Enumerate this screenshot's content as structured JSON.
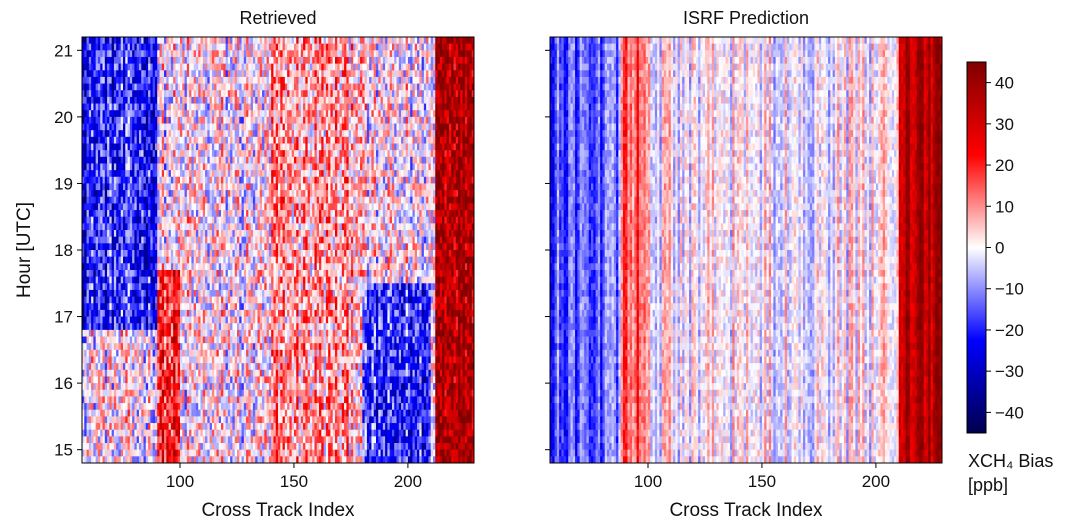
{
  "chart_data": [
    {
      "type": "heatmap",
      "title": "Retrieved",
      "xlabel": "Cross Track Index",
      "ylabel": "Hour [UTC]",
      "xlim": [
        57,
        229
      ],
      "ylim": [
        14.8,
        21.2
      ],
      "x_ticks": [
        100,
        150,
        200
      ],
      "y_ticks": [
        15,
        16,
        17,
        18,
        19,
        20,
        21
      ],
      "x_tick_labels": [
        "100",
        "150",
        "200"
      ],
      "y_tick_labels": [
        "15",
        "16",
        "17",
        "18",
        "19",
        "20",
        "21"
      ],
      "value_range": [
        -45,
        45
      ],
      "dominant_pattern": [
        {
          "x_range": [
            57,
            90
          ],
          "y_range": [
            16.8,
            21.2
          ],
          "bias": -20
        },
        {
          "x_range": [
            90,
            100
          ],
          "y_range": [
            14.8,
            17.7
          ],
          "bias": 20
        },
        {
          "x_range": [
            140,
            180
          ],
          "y_range": [
            14.8,
            21.2
          ],
          "bias": 8
        },
        {
          "x_range": [
            180,
            210
          ],
          "y_range": [
            14.8,
            17.5
          ],
          "bias": -20
        },
        {
          "x_range": [
            212,
            229
          ],
          "y_range": [
            14.8,
            21.2
          ],
          "bias": 38
        }
      ]
    },
    {
      "type": "heatmap",
      "title": "ISRF Prediction",
      "xlabel": "Cross Track Index",
      "ylabel": "",
      "xlim": [
        57,
        229
      ],
      "ylim": [
        14.8,
        21.2
      ],
      "x_ticks": [
        100,
        150,
        200
      ],
      "x_tick_labels": [
        "100",
        "150",
        "200"
      ],
      "value_range": [
        -45,
        45
      ],
      "dominant_pattern": [
        {
          "x_range": [
            57,
            88
          ],
          "y_range": [
            14.8,
            21.2
          ],
          "bias": -15
        },
        {
          "x_range": [
            88,
            100
          ],
          "y_range": [
            14.8,
            21.2
          ],
          "bias": 15
        },
        {
          "x_range": [
            210,
            229
          ],
          "y_range": [
            14.8,
            21.2
          ],
          "bias": 35
        }
      ]
    }
  ],
  "colorbar": {
    "colormap": "seismic",
    "min": -45,
    "max": 45,
    "ticks": [
      -40,
      -30,
      -20,
      -10,
      0,
      10,
      20,
      30,
      40
    ],
    "tick_labels": [
      "−40",
      "−30",
      "−20",
      "−10",
      "0",
      "10",
      "20",
      "30",
      "40"
    ],
    "label_line1": "XCH₄ Bias",
    "label_line2": "[ppb]"
  }
}
